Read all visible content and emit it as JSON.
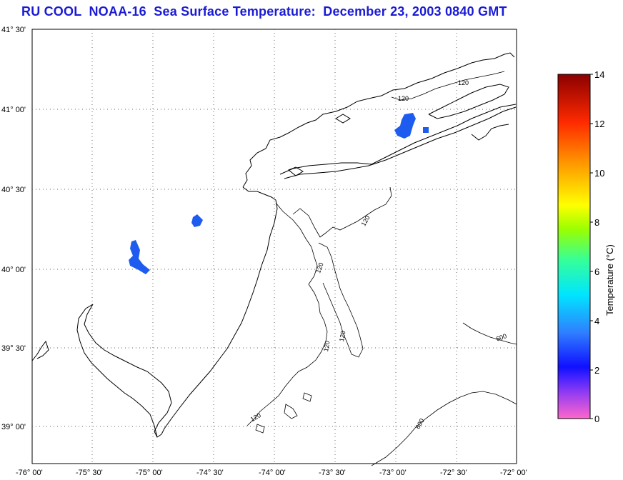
{
  "title": "RU COOL  NOAA-16  Sea Surface Temperature:  December 23, 2003 0840 GMT",
  "map": {
    "lon_ticks": [
      "-76° 00'",
      "-75° 30'",
      "-75° 00'",
      "-74° 30'",
      "-74° 00'",
      "-73° 30'",
      "-73° 00'",
      "-72° 30'",
      "-72° 00'"
    ],
    "lat_ticks": [
      "41° 30'",
      "41° 00'",
      "40° 30'",
      "40° 00'",
      "39° 30'",
      "39° 00'"
    ],
    "contour_labels": [
      "120",
      "120",
      "120",
      "120",
      "120",
      "120",
      "120",
      "600",
      "600"
    ],
    "lon_range": [
      -76.0,
      -72.0
    ],
    "lat_range": [
      38.75,
      41.5
    ],
    "grid": true,
    "land_color": "#ffffff",
    "ocean_no_data_color": "#ffffff",
    "sst_patch_color": "#1e5cf0"
  },
  "colorbar": {
    "title": "Temperature (°C)",
    "ticks": [
      "14",
      "12",
      "10",
      "8",
      "6",
      "4",
      "2",
      "0"
    ],
    "range": [
      0,
      14
    ],
    "colors": [
      "#ff66cc",
      "#8a2be2",
      "#1010ff",
      "#2f80ff",
      "#00e5ff",
      "#35ff9a",
      "#9aff00",
      "#ffff00",
      "#ff9900",
      "#ff2a00",
      "#8b0000"
    ]
  }
}
